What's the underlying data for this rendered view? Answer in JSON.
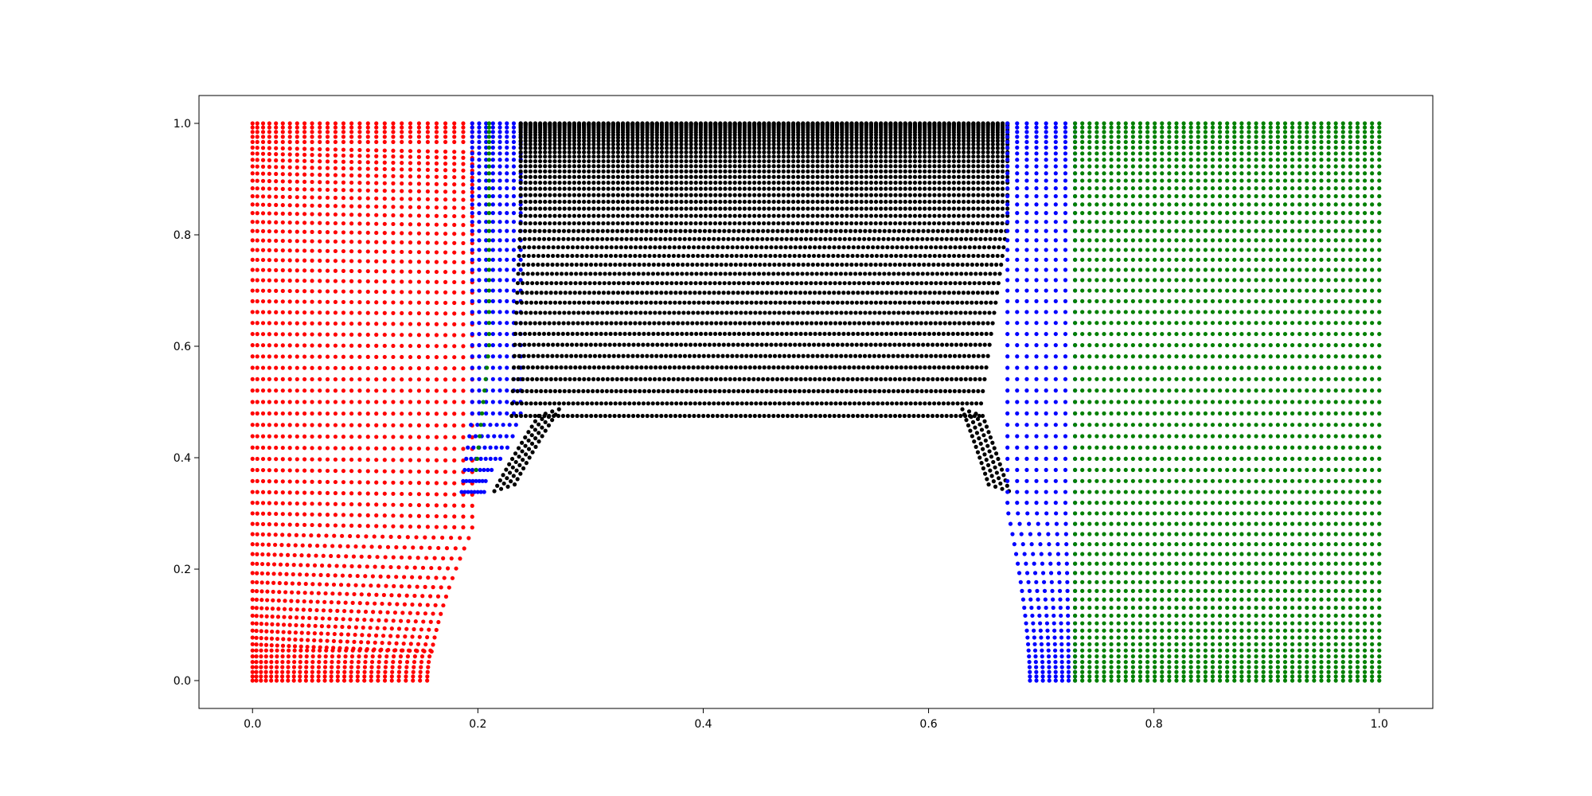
{
  "chart_data": {
    "type": "scatter",
    "title": "",
    "xlabel": "",
    "ylabel": "",
    "xlim": [
      -0.0475,
      1.0475
    ],
    "ylim": [
      -0.05,
      1.05
    ],
    "x_ticks": [
      0.0,
      0.2,
      0.4,
      0.6,
      0.8,
      1.0
    ],
    "x_tick_labels": [
      "0.0",
      "0.2",
      "0.4",
      "0.6",
      "0.8",
      "1.0"
    ],
    "y_ticks": [
      0.0,
      0.2,
      0.4,
      0.6,
      0.8,
      1.0
    ],
    "y_tick_labels": [
      "0.0",
      "0.2",
      "0.4",
      "0.6",
      "0.8",
      "1.0"
    ],
    "grid": false,
    "legend": "none",
    "description": "Structured mesh nodes around a trapezoidal obstacle (base from x≈0.155 to x≈0.690 at y=0, top from x≈0.25 to x≈0.65 at y≈0.475), nodes colored by block",
    "series": [
      {
        "color": "#ff0000",
        "block": "left",
        "x_range_bottom": [
          0.0,
          0.155
        ],
        "x_range_top": [
          0.0,
          0.195
        ],
        "y_range": [
          0.0,
          1.0
        ]
      },
      {
        "color": "#0000ff",
        "block": "left-transition",
        "x_range_bottom": [
          0.185,
          0.235
        ],
        "x_range_top": [
          0.195,
          0.24
        ],
        "y_range": [
          0.32,
          1.0
        ]
      },
      {
        "color": "#008000",
        "block": "left-seam",
        "x_at_top": 0.21,
        "y_range": [
          0.37,
          1.0
        ]
      },
      {
        "color": "#000000",
        "block": "center",
        "x_range": [
          0.235,
          0.67
        ],
        "y_range": [
          0.475,
          1.0
        ]
      },
      {
        "color": "#0000ff",
        "block": "right-transition",
        "x_range_bottom": [
          0.69,
          0.73
        ],
        "x_range_top": [
          0.67,
          0.73
        ],
        "y_range": [
          0.0,
          1.0
        ]
      },
      {
        "color": "#008000",
        "block": "right",
        "x_range": [
          0.73,
          1.0
        ],
        "y_range": [
          0.0,
          1.0
        ]
      }
    ]
  }
}
